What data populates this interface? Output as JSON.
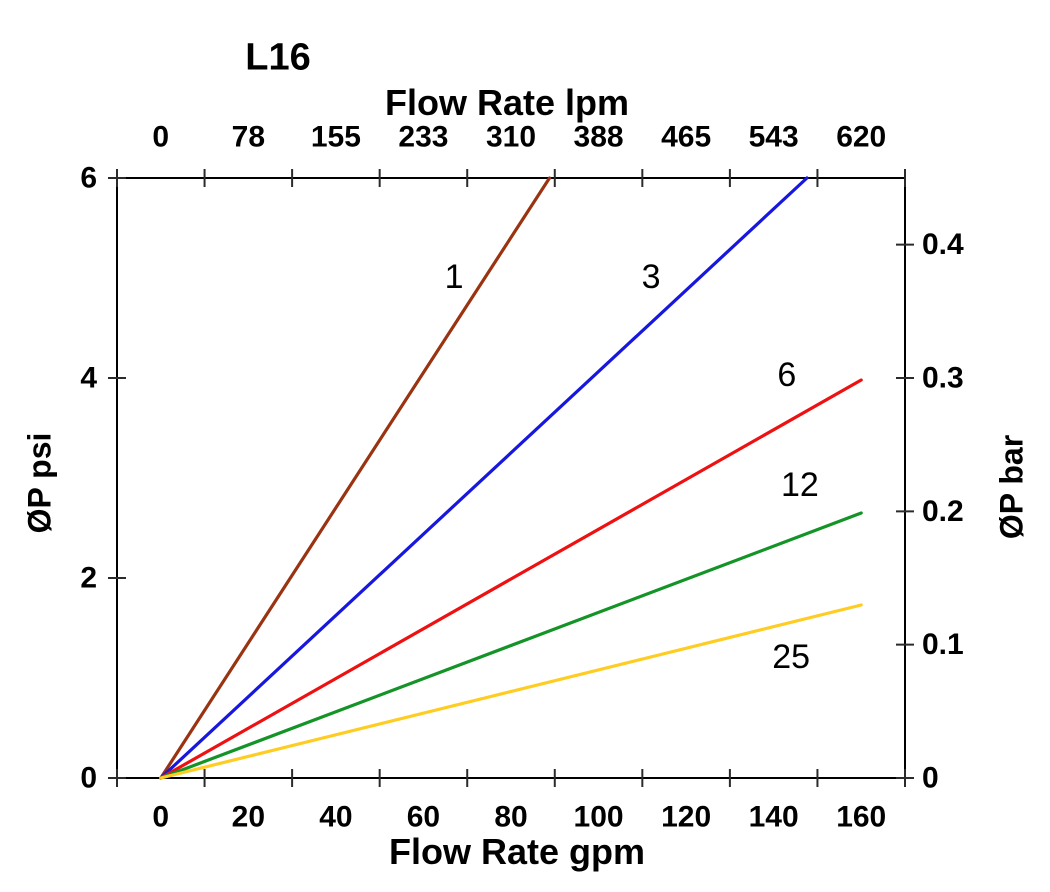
{
  "title": "L16",
  "chart_data": {
    "type": "line",
    "title": "L16",
    "grid": false,
    "legend": "inline numeric labels next to each line",
    "x_axis_bottom": {
      "label": "Flow Rate gpm",
      "ticks": [
        "0",
        "20",
        "40",
        "60",
        "80",
        "100",
        "120",
        "140",
        "160"
      ],
      "range": [
        0,
        160
      ],
      "note": "labels centered between tick marks"
    },
    "x_axis_top": {
      "label": "Flow Rate lpm",
      "ticks": [
        "0",
        "78",
        "155",
        "233",
        "310",
        "388",
        "465",
        "543",
        "620"
      ],
      "range": [
        0,
        620
      ]
    },
    "y_axis_left": {
      "label": "ØP psi",
      "ticks": [
        "0",
        "2",
        "4",
        "6"
      ],
      "tick_values": [
        0,
        2,
        4,
        6
      ],
      "range": [
        0,
        6
      ]
    },
    "y_axis_right": {
      "label": "ØP bar",
      "ticks": [
        "0",
        "0.1",
        "0.2",
        "0.3",
        "0.4"
      ],
      "tick_values": [
        0,
        0.1,
        0.2,
        0.3,
        0.4
      ],
      "range": [
        0,
        0.45
      ]
    },
    "series": [
      {
        "name": "1",
        "color": "#993311",
        "points_gpm_psi": [
          [
            0,
            0
          ],
          [
            88.8,
            6.0
          ]
        ],
        "label_pos": [
          67,
          5.01
        ]
      },
      {
        "name": "3",
        "color": "#1717dd",
        "points_gpm_psi": [
          [
            0,
            0
          ],
          [
            147.6,
            6.0
          ]
        ],
        "label_pos": [
          112,
          5.01
        ]
      },
      {
        "name": "6",
        "color": "#ee1111",
        "points_gpm_psi": [
          [
            0,
            0
          ],
          [
            160,
            3.98
          ]
        ],
        "label_pos": [
          143,
          4.03
        ]
      },
      {
        "name": "12",
        "color": "#149427",
        "points_gpm_psi": [
          [
            0,
            0
          ],
          [
            160,
            2.65
          ]
        ],
        "label_pos": [
          146,
          2.93
        ]
      },
      {
        "name": "25",
        "color": "#ffcc22",
        "points_gpm_psi": [
          [
            0,
            0
          ],
          [
            160,
            1.73
          ]
        ],
        "label_pos": [
          144,
          1.21
        ]
      }
    ],
    "colors": {
      "axis": "#000000",
      "tick": "#2b2b2b",
      "text": "#000000"
    }
  }
}
